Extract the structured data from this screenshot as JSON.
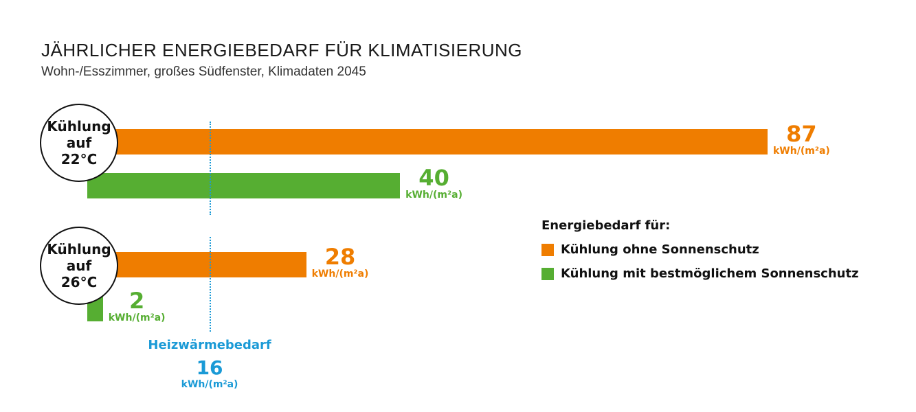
{
  "title": "JÄHRLICHER ENERGIEBEDARF FÜR KLIMATISIERUNG",
  "subtitle": "Wohn-/Esszimmer, großes Südfenster, Klimadaten 2045",
  "colors": {
    "orange": "#ef7d00",
    "green": "#56ae32",
    "blue": "#1a9ad6"
  },
  "chart_data": {
    "type": "bar",
    "orientation": "horizontal",
    "unit": "kWh/(m²a)",
    "groups": [
      {
        "label_lines": [
          "Kühlung",
          "auf",
          "22°C"
        ],
        "values": {
          "ohne": 87,
          "mit": 40
        }
      },
      {
        "label_lines": [
          "Kühlung",
          "auf",
          "26°C"
        ],
        "values": {
          "ohne": 28,
          "mit": 2
        }
      }
    ],
    "series": [
      {
        "key": "ohne",
        "name": "Kühlung ohne Sonnenschutz",
        "color": "#ef7d00"
      },
      {
        "key": "mit",
        "name": "Kühlung mit bestmöglichem Sonnenschutz",
        "color": "#56ae32"
      }
    ],
    "legend_title": "Energiebedarf für:",
    "legend_position": "right",
    "reference_line": {
      "label": "Heizwärmebedarf",
      "value": 16,
      "unit": "kWh/(m²a)"
    }
  }
}
